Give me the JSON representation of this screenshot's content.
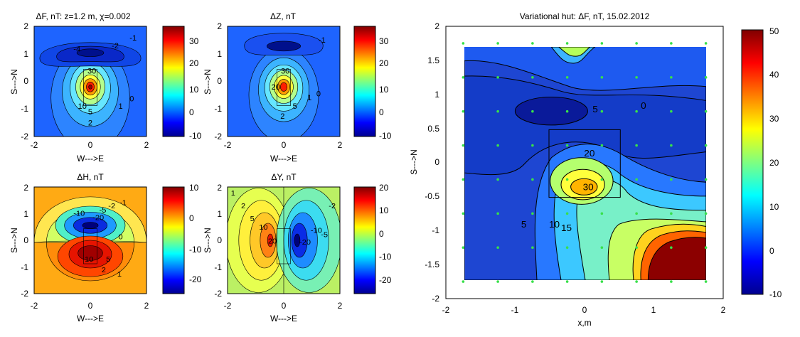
{
  "chart_data": [
    {
      "type": "heatmap",
      "title": "ΔF, nT: z=1.2 m, χ=0.002",
      "xlabel": "W--->E",
      "ylabel": "S--->N",
      "xlim": [
        -2,
        2
      ],
      "ylim": [
        -2,
        2
      ],
      "xticks": [
        "-2",
        "0",
        "2"
      ],
      "yticks": [
        "2",
        "1",
        "0",
        "-1",
        "-2"
      ],
      "colorbar": {
        "min": -15,
        "max": 35,
        "ticks": [
          "30",
          "20",
          "10",
          "0",
          "-10"
        ]
      },
      "contour_labels": [
        "-4",
        "-2",
        "-1",
        "30",
        "20",
        "10",
        "5",
        "2",
        "1",
        "0"
      ],
      "anomalies": [
        {
          "x": 0,
          "y": -0.2,
          "value": 34
        },
        {
          "x": 0,
          "y": 0.7,
          "value": -10
        }
      ]
    },
    {
      "type": "heatmap",
      "title": "ΔZ, nT",
      "xlabel": "W--->E",
      "ylabel": "S--->N",
      "xlim": [
        -2,
        2
      ],
      "ylim": [
        -2,
        2
      ],
      "xticks": [
        "-2",
        "0",
        "2"
      ],
      "yticks": [
        "2",
        "1",
        "0",
        "-1",
        "-2"
      ],
      "colorbar": {
        "min": -15,
        "max": 35,
        "ticks": [
          "30",
          "20",
          "10",
          "0",
          "-10"
        ]
      },
      "contour_labels": [
        "-1",
        "30",
        "20",
        "10",
        "5",
        "2",
        "1",
        "0"
      ],
      "anomalies": [
        {
          "x": 0,
          "y": -0.2,
          "value": 34
        },
        {
          "x": 0,
          "y": 0.7,
          "value": -12
        }
      ]
    },
    {
      "type": "heatmap",
      "title": "ΔH, nT",
      "xlabel": "W--->E",
      "ylabel": "S--->N",
      "xlim": [
        -2,
        2
      ],
      "ylim": [
        -2,
        2
      ],
      "xticks": [
        "-2",
        "0",
        "2"
      ],
      "yticks": [
        "2",
        "1",
        "0",
        "-1",
        "-2"
      ],
      "colorbar": {
        "min": -27,
        "max": 10,
        "ticks": [
          "10",
          "0",
          "-10",
          "-20"
        ]
      },
      "contour_labels": [
        "-1",
        "-2",
        "-5",
        "-10",
        "-20",
        "0",
        "10",
        "5",
        "2",
        "1"
      ],
      "anomalies": [
        {
          "x": 0,
          "y": 0.5,
          "value": -27
        },
        {
          "x": 0,
          "y": -0.7,
          "value": 10
        }
      ]
    },
    {
      "type": "heatmap",
      "title": "ΔY, nT",
      "xlabel": "W--->E",
      "ylabel": "S--->N",
      "xlim": [
        -2,
        2
      ],
      "ylim": [
        -2,
        2
      ],
      "xticks": [
        "-2",
        "0",
        "2"
      ],
      "yticks": [
        "2",
        "1",
        "0",
        "-1",
        "-2"
      ],
      "colorbar": {
        "min": -27,
        "max": 20,
        "ticks": [
          "20",
          "10",
          "0",
          "-10",
          "-20"
        ]
      },
      "contour_labels": [
        "1",
        "2",
        "5",
        "10",
        "20",
        "-20",
        "-10",
        "-5",
        "-2"
      ],
      "anomalies": [
        {
          "x": -0.5,
          "y": 0,
          "value": 20
        },
        {
          "x": 0.5,
          "y": 0,
          "value": -27
        }
      ]
    },
    {
      "type": "heatmap",
      "title": "Variational hut: ΔF, nT, 15.02.2012",
      "xlabel": "x,m",
      "ylabel": "S--->N",
      "xlim": [
        -2,
        2
      ],
      "ylim": [
        -2,
        2
      ],
      "xticks": [
        "-2",
        "-1",
        "0",
        "1",
        "2"
      ],
      "yticks": [
        "2",
        "1.5",
        "1",
        "0.5",
        "0",
        "-0.5",
        "-1",
        "-1.5",
        "-2"
      ],
      "colorbar": {
        "min": -10,
        "max": 50,
        "ticks": [
          "50",
          "40",
          "30",
          "20",
          "10",
          "0",
          "-10"
        ]
      },
      "contour_labels": [
        "5",
        "0",
        "20",
        "30",
        "5",
        "10",
        "15"
      ],
      "anomalies": [
        {
          "x": 0,
          "y": -0.25,
          "value": 32
        },
        {
          "x": -0.15,
          "y": 0.85,
          "value": -10
        },
        {
          "x": 1.1,
          "y": -1.25,
          "value": 50
        }
      ],
      "measurement_grid": {
        "x": [
          -1.75,
          -1.25,
          -0.75,
          -0.25,
          0.25,
          0.75,
          1.25,
          1.75
        ],
        "y": [
          -1.75,
          -1.25,
          -0.75,
          -0.25,
          0.25,
          0.75,
          1.25,
          1.75
        ]
      }
    }
  ]
}
